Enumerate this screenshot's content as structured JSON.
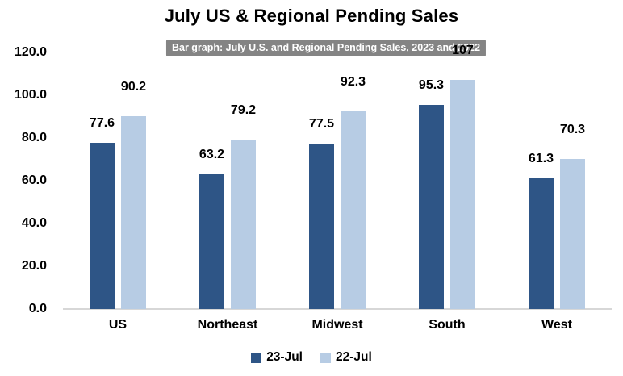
{
  "title": "July US & Regional Pending Sales",
  "tooltip": {
    "text": "Bar graph: July U.S. and Regional Pending Sales, 2023 and 2022"
  },
  "chart_data": {
    "type": "bar",
    "title": "July US & Regional Pending Sales",
    "categories": [
      "US",
      "Northeast",
      "Midwest",
      "South",
      "West"
    ],
    "series": [
      {
        "name": "23-Jul",
        "color": "#2E5586",
        "values": [
          77.6,
          63.2,
          77.5,
          95.3,
          61.3
        ],
        "labels": [
          "77.6",
          "63.2",
          "77.5",
          "95.3",
          "61.3"
        ]
      },
      {
        "name": "22-Jul",
        "color": "#B7CCE4",
        "values": [
          90.2,
          79.2,
          92.3,
          107,
          70.3
        ],
        "labels": [
          "90.2",
          "79.2",
          "92.3",
          "107",
          "70.3"
        ]
      }
    ],
    "ylim": [
      0,
      120
    ],
    "yticks": [
      {
        "value": 120,
        "label": "120.0"
      },
      {
        "value": 100,
        "label": "100.0"
      },
      {
        "value": 80,
        "label": "80.0"
      },
      {
        "value": 60,
        "label": "60.0"
      },
      {
        "value": 40,
        "label": "40.0"
      },
      {
        "value": 20,
        "label": "20.0"
      },
      {
        "value": 0,
        "label": "0.0"
      }
    ],
    "xlabel": "",
    "ylabel": "",
    "grid": "baseline-only",
    "legend_position": "bottom"
  },
  "colors": {
    "background": "#FFFFFF",
    "axis_line": "#D7D7D7",
    "text": "#000000",
    "tooltip_bg": "#848484",
    "tooltip_text": "#FFFFFF"
  }
}
